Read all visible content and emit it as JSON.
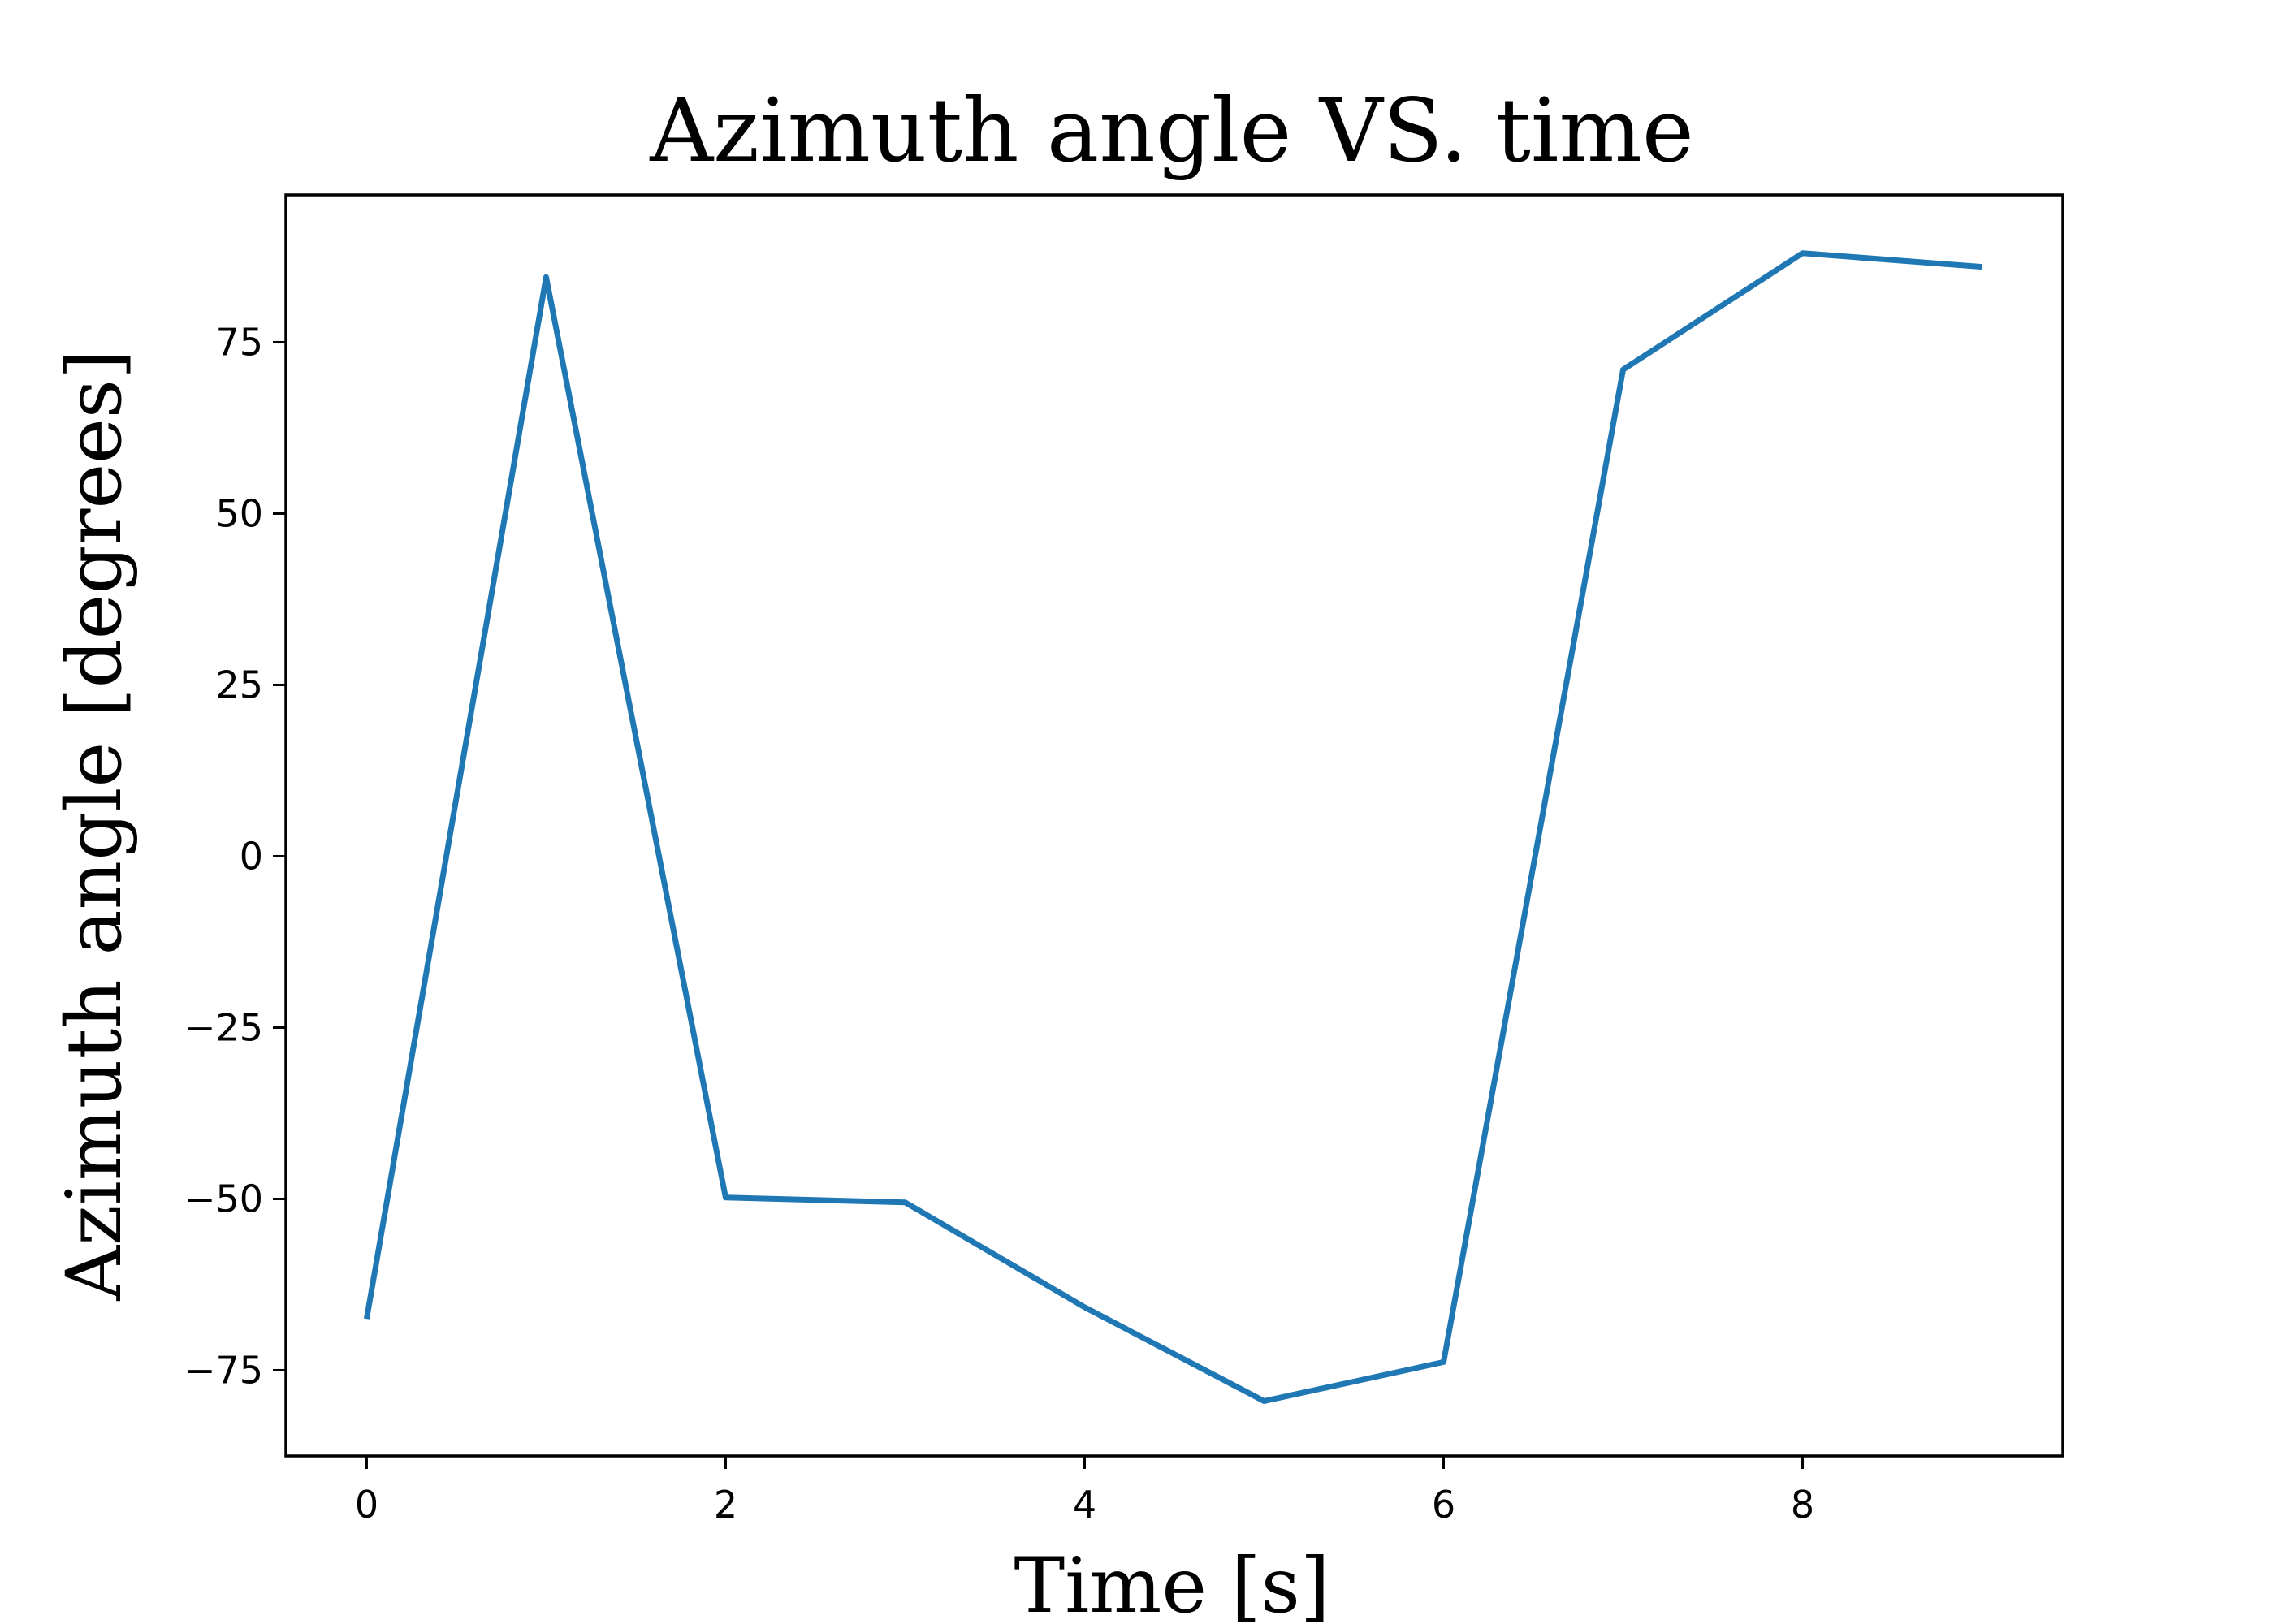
{
  "chart_data": {
    "type": "line",
    "title": "Azimuth angle VS. time",
    "xlabel": "Time [s]",
    "ylabel": "Azimuth angle [degrees]",
    "x": [
      0,
      1,
      2,
      3,
      4,
      5,
      6,
      7,
      8,
      9
    ],
    "series": [
      {
        "values": [
          -67.5,
          84.5,
          -49.8,
          -50.5,
          -65.8,
          -79.5,
          -73.8,
          71.0,
          88.0,
          86.0
        ],
        "color": "#1f77b4"
      }
    ],
    "xlim": [
      -0.45,
      9.45
    ],
    "ylim": [
      -87.5,
      96.5
    ],
    "xticks": [
      0,
      2,
      4,
      6,
      8
    ],
    "yticks": [
      -75,
      -50,
      -25,
      0,
      25,
      50,
      75
    ],
    "xtick_labels": [
      "0",
      "2",
      "4",
      "6",
      "8"
    ],
    "ytick_labels": [
      "−75",
      "−50",
      "−25",
      "0",
      "25",
      "50",
      "75"
    ],
    "grid": false,
    "legend": false
  }
}
